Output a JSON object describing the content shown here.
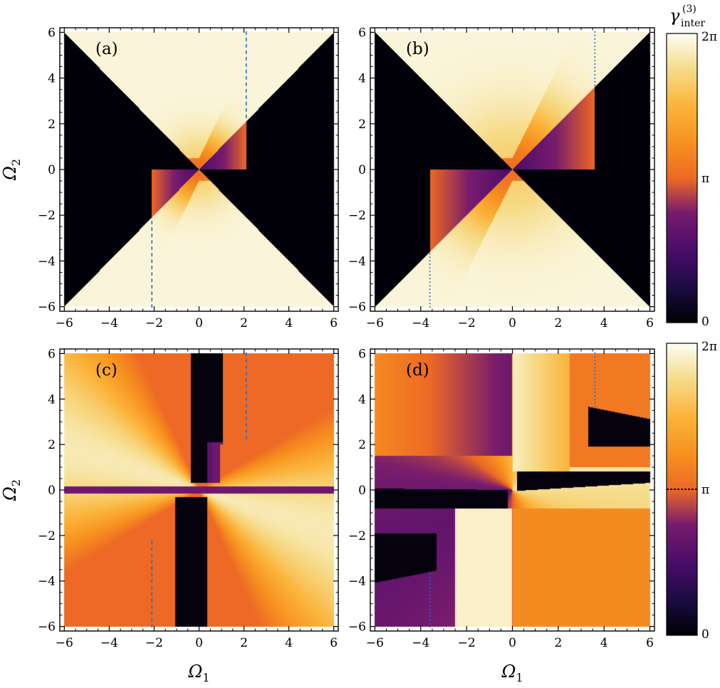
{
  "chart_data": {
    "type": "heatmap",
    "colorbar": {
      "title_main": "γ",
      "title_sup": "(3)",
      "title_sub": "inter",
      "ticks": [
        "2π",
        "π",
        "0"
      ],
      "range": [
        0,
        6.2832
      ],
      "colormap": "inferno"
    },
    "axes": {
      "xlabel_main": "Ω",
      "xlabel_sub": "1",
      "ylabel_main": "Ω",
      "ylabel_sub": "2",
      "xlim": [
        -6.2,
        6.2
      ],
      "ylim": [
        -6.2,
        6.2
      ],
      "xticks": [
        -6,
        -4,
        -2,
        0,
        2,
        4,
        6
      ],
      "yticks": [
        -6,
        -4,
        -2,
        0,
        2,
        4,
        6
      ],
      "xtick_labels": [
        "−6",
        "−4",
        "−2",
        "0",
        "2",
        "4",
        "6"
      ],
      "ytick_labels": [
        "−6",
        "−4",
        "−2",
        "0",
        "2",
        "4",
        "6"
      ]
    },
    "panels": [
      {
        "label": "(a)",
        "row": 0,
        "col": 0,
        "kind": "cone",
        "exceptional_point": 2.1,
        "ep_line": "dashed"
      },
      {
        "label": "(b)",
        "row": 0,
        "col": 1,
        "kind": "cone",
        "exceptional_point": 3.6,
        "ep_line": "dotted"
      },
      {
        "label": "(c)",
        "row": 1,
        "col": 0,
        "kind": "hyperbola",
        "exceptional_point": 2.1,
        "ep_line": "dashed"
      },
      {
        "label": "(d)",
        "row": 1,
        "col": 1,
        "kind": "saddle",
        "exceptional_point": 3.6,
        "ep_line": "dotted"
      }
    ]
  }
}
